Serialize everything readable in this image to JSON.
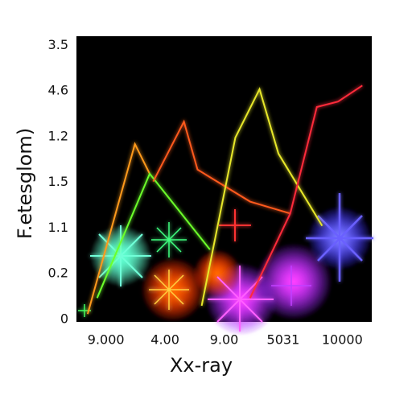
{
  "chart_data": {
    "type": "line",
    "x_label": "Xx-ray",
    "y_label": "F.etesglom)",
    "categories": [
      "9.000",
      "4.00",
      "9.00",
      "5031",
      "10000"
    ],
    "ycategories": [
      "0",
      "0.2",
      "1.1",
      "1.5",
      "1.2",
      "4.6",
      "3.5"
    ],
    "xlim": [
      -0.5,
      4.5
    ],
    "ylim": [
      0,
      6.2
    ],
    "series": [
      {
        "color": "#ff9a1a",
        "x": [
          -0.31,
          0.49,
          0.74
        ],
        "values": [
          0.12,
          3.84,
          3.19
        ]
      },
      {
        "color": "#6cff2a",
        "x": [
          -0.15,
          0.74,
          1.76
        ],
        "values": [
          0.47,
          3.19,
          1.53
        ]
      },
      {
        "color": "#ff5a1e",
        "x": [
          0.8,
          1.32,
          1.55,
          2.44,
          3.12
        ],
        "values": [
          3.02,
          4.33,
          3.28,
          2.58,
          2.32
        ]
      },
      {
        "color": "#e8e82a",
        "x": [
          1.62,
          2.19,
          2.6,
          2.92,
          3.66
        ],
        "values": [
          0.3,
          3.98,
          5.04,
          3.63,
          2.05
        ]
      },
      {
        "color": "#ff2a3a",
        "x": [
          2.44,
          3.12,
          3.57,
          3.93,
          4.34
        ],
        "values": [
          0.47,
          2.32,
          4.65,
          4.77,
          5.12
        ]
      }
    ]
  }
}
